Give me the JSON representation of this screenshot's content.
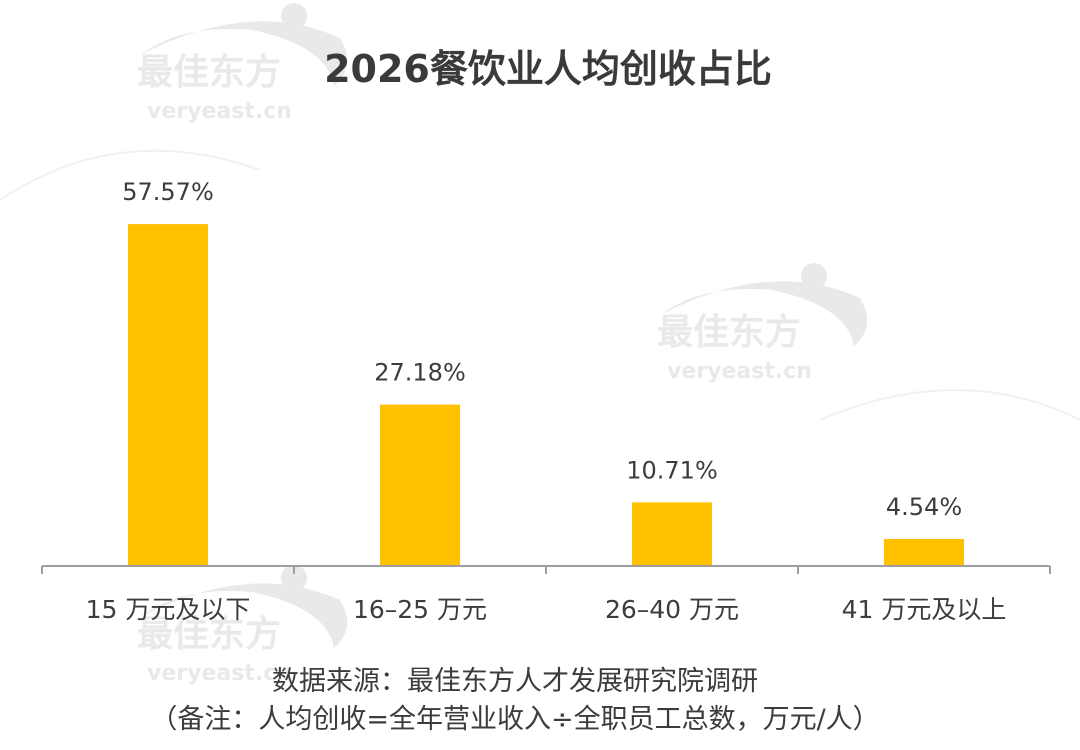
{
  "watermark": {
    "brand": "最佳东方",
    "site": "veryeast.cn"
  },
  "colors": {
    "bar": "#FFC000",
    "axis": "#9e9e9e",
    "text": "#3c3c3c",
    "watermark": "#e7e7e7"
  },
  "chart_data": {
    "type": "bar",
    "title": "2026餐饮业人均创收占比",
    "xlabel": "",
    "ylabel": "",
    "ylim": [
      0,
      65
    ],
    "grid": false,
    "legend": "none",
    "categories": [
      "15 万元及以下",
      "16–25 万元",
      "26–40 万元",
      "41 万元及以上"
    ],
    "values": [
      57.57,
      27.18,
      10.71,
      4.54
    ],
    "value_labels": [
      "57.57%",
      "27.18%",
      "10.71%",
      "4.54%"
    ]
  },
  "notes": {
    "source": "数据来源：最佳东方人才发展研究院调研",
    "remark": "（备注：人均创收=全年营业收入÷全职员工总数，万元/人）"
  }
}
